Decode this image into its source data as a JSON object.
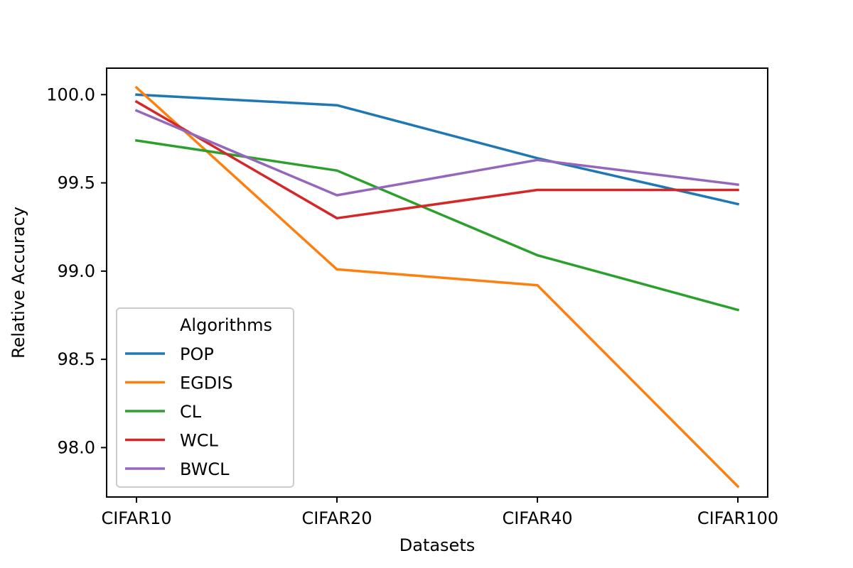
{
  "chart_data": {
    "type": "line",
    "title": "",
    "xlabel": "Datasets",
    "ylabel": "Relative Accuracy",
    "categories": [
      "CIFAR10",
      "CIFAR20",
      "CIFAR40",
      "CIFAR100"
    ],
    "ylim": [
      97.72,
      100.15
    ],
    "yticks": [
      98.0,
      98.5,
      99.0,
      99.5,
      100.0
    ],
    "ytick_labels": [
      "98.0",
      "98.5",
      "99.0",
      "99.5",
      "100.0"
    ],
    "grid": false,
    "legend": {
      "title": "Algorithms",
      "position": "lower-left"
    },
    "series": [
      {
        "name": "POP",
        "color": "#1f77b4",
        "values": [
          100.0,
          99.94,
          99.64,
          99.38
        ]
      },
      {
        "name": "EGDIS",
        "color": "#ff7f0e",
        "values": [
          100.04,
          99.01,
          98.92,
          97.78
        ]
      },
      {
        "name": "CL",
        "color": "#2ca02c",
        "values": [
          99.74,
          99.57,
          99.09,
          98.78
        ]
      },
      {
        "name": "WCL",
        "color": "#d62728",
        "values": [
          99.96,
          99.3,
          99.46,
          99.46
        ]
      },
      {
        "name": "BWCL",
        "color": "#9467bd",
        "values": [
          99.91,
          99.43,
          99.63,
          99.49
        ]
      }
    ]
  }
}
